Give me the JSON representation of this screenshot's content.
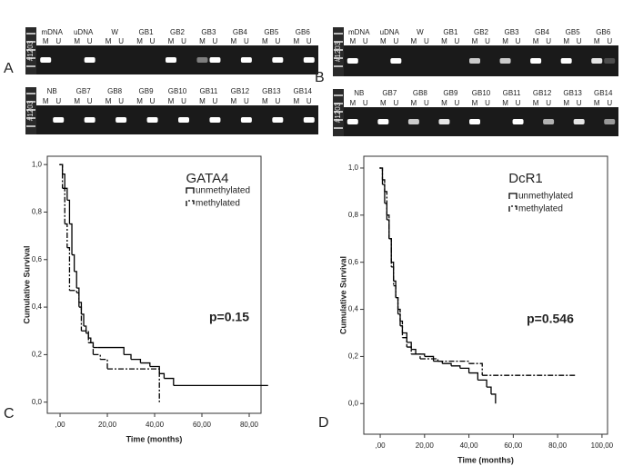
{
  "gel_panels": [
    {
      "letter": "A",
      "rows": [
        {
          "marker": "#1203",
          "samples": [
            "mDNA",
            "uDNA",
            "W",
            "GB1",
            "GB2",
            "GB3",
            "GB4",
            "GB5",
            "GB6"
          ],
          "lanes": [
            "M",
            "U",
            "M",
            "U",
            "M",
            "U",
            "M",
            "U",
            "M",
            "U",
            "M",
            "U",
            "M",
            "U",
            "M",
            "U",
            "M",
            "U"
          ]
        },
        {
          "marker": "#1203",
          "samples": [
            "NB",
            "GB7",
            "GB8",
            "GB9",
            "GB10",
            "GB11",
            "GB12",
            "GB13",
            "GB14"
          ],
          "lanes": [
            "M",
            "U",
            "M",
            "U",
            "M",
            "U",
            "M",
            "U",
            "M",
            "U",
            "M",
            "U",
            "M",
            "U",
            "M",
            "U",
            "M",
            "U"
          ]
        }
      ]
    },
    {
      "letter": "B",
      "rows": [
        {
          "marker": "#1203",
          "samples": [
            "mDNA",
            "uDNA",
            "W",
            "GB1",
            "GB2",
            "GB3",
            "GB4",
            "GB5",
            "GB6"
          ],
          "lanes": [
            "M",
            "U",
            "M",
            "U",
            "M",
            "U",
            "M",
            "U",
            "M",
            "U",
            "M",
            "U",
            "M",
            "U",
            "M",
            "U",
            "M",
            "U"
          ]
        },
        {
          "marker": "#1203",
          "samples": [
            "NB",
            "GB7",
            "GB8",
            "GB9",
            "GB10",
            "GB11",
            "GB12",
            "GB13",
            "GB14"
          ],
          "lanes": [
            "M",
            "U",
            "M",
            "U",
            "M",
            "U",
            "M",
            "U",
            "M",
            "U",
            "M",
            "U",
            "M",
            "U",
            "M",
            "U",
            "M",
            "U"
          ]
        }
      ]
    }
  ],
  "chart_data": [
    {
      "type": "line",
      "letter": "C",
      "title": "GATA4",
      "annotation": "p=0.15",
      "x_label": "Time (months)",
      "y_label": "Cumulative Survival",
      "xlim": [
        -5.4,
        85
      ],
      "ylim": [
        -0.047,
        1.035
      ],
      "xticks": [
        {
          "value": 0,
          "label": ",00"
        },
        {
          "value": 20,
          "label": "20,00"
        },
        {
          "value": 40,
          "label": "40,00"
        },
        {
          "value": 60,
          "label": "60,00"
        },
        {
          "value": 80,
          "label": "80,00"
        }
      ],
      "yticks": [
        {
          "value": 0,
          "label": "0,0"
        },
        {
          "value": 0.2,
          "label": "0,2"
        },
        {
          "value": 0.4,
          "label": "0,4"
        },
        {
          "value": 0.6,
          "label": "0,6"
        },
        {
          "value": 0.8,
          "label": "0,8"
        },
        {
          "value": 1,
          "label": "1,0"
        }
      ],
      "series": [
        {
          "name": "unmethylated",
          "color": "#000000",
          "style": "solid",
          "x": [
            0,
            1,
            2,
            3,
            4,
            5,
            6,
            7,
            8,
            9,
            10,
            11,
            12,
            13,
            14,
            16,
            27,
            30,
            34,
            38,
            42,
            44,
            48,
            88
          ],
          "values": [
            1,
            0.96,
            0.9,
            0.85,
            0.75,
            0.62,
            0.55,
            0.48,
            0.42,
            0.37,
            0.32,
            0.29,
            0.27,
            0.25,
            0.23,
            0.23,
            0.2,
            0.18,
            0.165,
            0.15,
            0.12,
            0.1,
            0.07,
            0.07
          ]
        },
        {
          "name": "methylated",
          "color": "#000000",
          "style": "dashed",
          "x": [
            0,
            1,
            2,
            3,
            4,
            7,
            8,
            9,
            12,
            14,
            17,
            20,
            42
          ],
          "values": [
            1,
            0.9,
            0.75,
            0.65,
            0.47,
            0.46,
            0.4,
            0.3,
            0.25,
            0.2,
            0.18,
            0.14,
            0
          ]
        }
      ]
    },
    {
      "type": "line",
      "letter": "D",
      "title": "DcR1",
      "annotation": "p=0.546",
      "x_label": "Time (months)",
      "y_label": "Cumulative Survival",
      "xlim": [
        -7.4,
        102.5
      ],
      "ylim": [
        -0.13,
        1.05
      ],
      "xticks": [
        {
          "value": 0,
          "label": ",00"
        },
        {
          "value": 20,
          "label": "20,00"
        },
        {
          "value": 40,
          "label": "40,00"
        },
        {
          "value": 60,
          "label": "60,00"
        },
        {
          "value": 80,
          "label": "80,00"
        },
        {
          "value": 100,
          "label": "100,00"
        }
      ],
      "yticks": [
        {
          "value": 0,
          "label": "0,0"
        },
        {
          "value": 0.2,
          "label": "0,2"
        },
        {
          "value": 0.4,
          "label": "0,4"
        },
        {
          "value": 0.6,
          "label": "0,6"
        },
        {
          "value": 0.8,
          "label": "0,8"
        },
        {
          "value": 1,
          "label": "1,0"
        }
      ],
      "series": [
        {
          "name": "unmethylated",
          "color": "#000000",
          "style": "solid",
          "x": [
            0,
            1,
            2,
            3,
            4,
            5,
            6,
            7,
            8,
            9,
            10,
            12,
            14,
            16,
            20,
            24,
            28,
            32,
            36,
            40,
            44,
            48,
            50,
            52
          ],
          "values": [
            1,
            0.93,
            0.85,
            0.78,
            0.7,
            0.6,
            0.52,
            0.45,
            0.38,
            0.33,
            0.3,
            0.26,
            0.23,
            0.21,
            0.2,
            0.18,
            0.17,
            0.16,
            0.15,
            0.13,
            0.1,
            0.07,
            0.04,
            0
          ]
        },
        {
          "name": "methylated",
          "color": "#000000",
          "style": "dashed",
          "x": [
            0,
            1,
            2,
            3,
            4,
            5,
            6,
            7,
            8,
            9,
            10,
            12,
            14,
            18,
            26,
            40,
            46,
            88
          ],
          "values": [
            1,
            0.95,
            0.9,
            0.8,
            0.7,
            0.58,
            0.5,
            0.45,
            0.4,
            0.35,
            0.28,
            0.24,
            0.21,
            0.19,
            0.18,
            0.17,
            0.12,
            0.12
          ]
        }
      ]
    }
  ]
}
